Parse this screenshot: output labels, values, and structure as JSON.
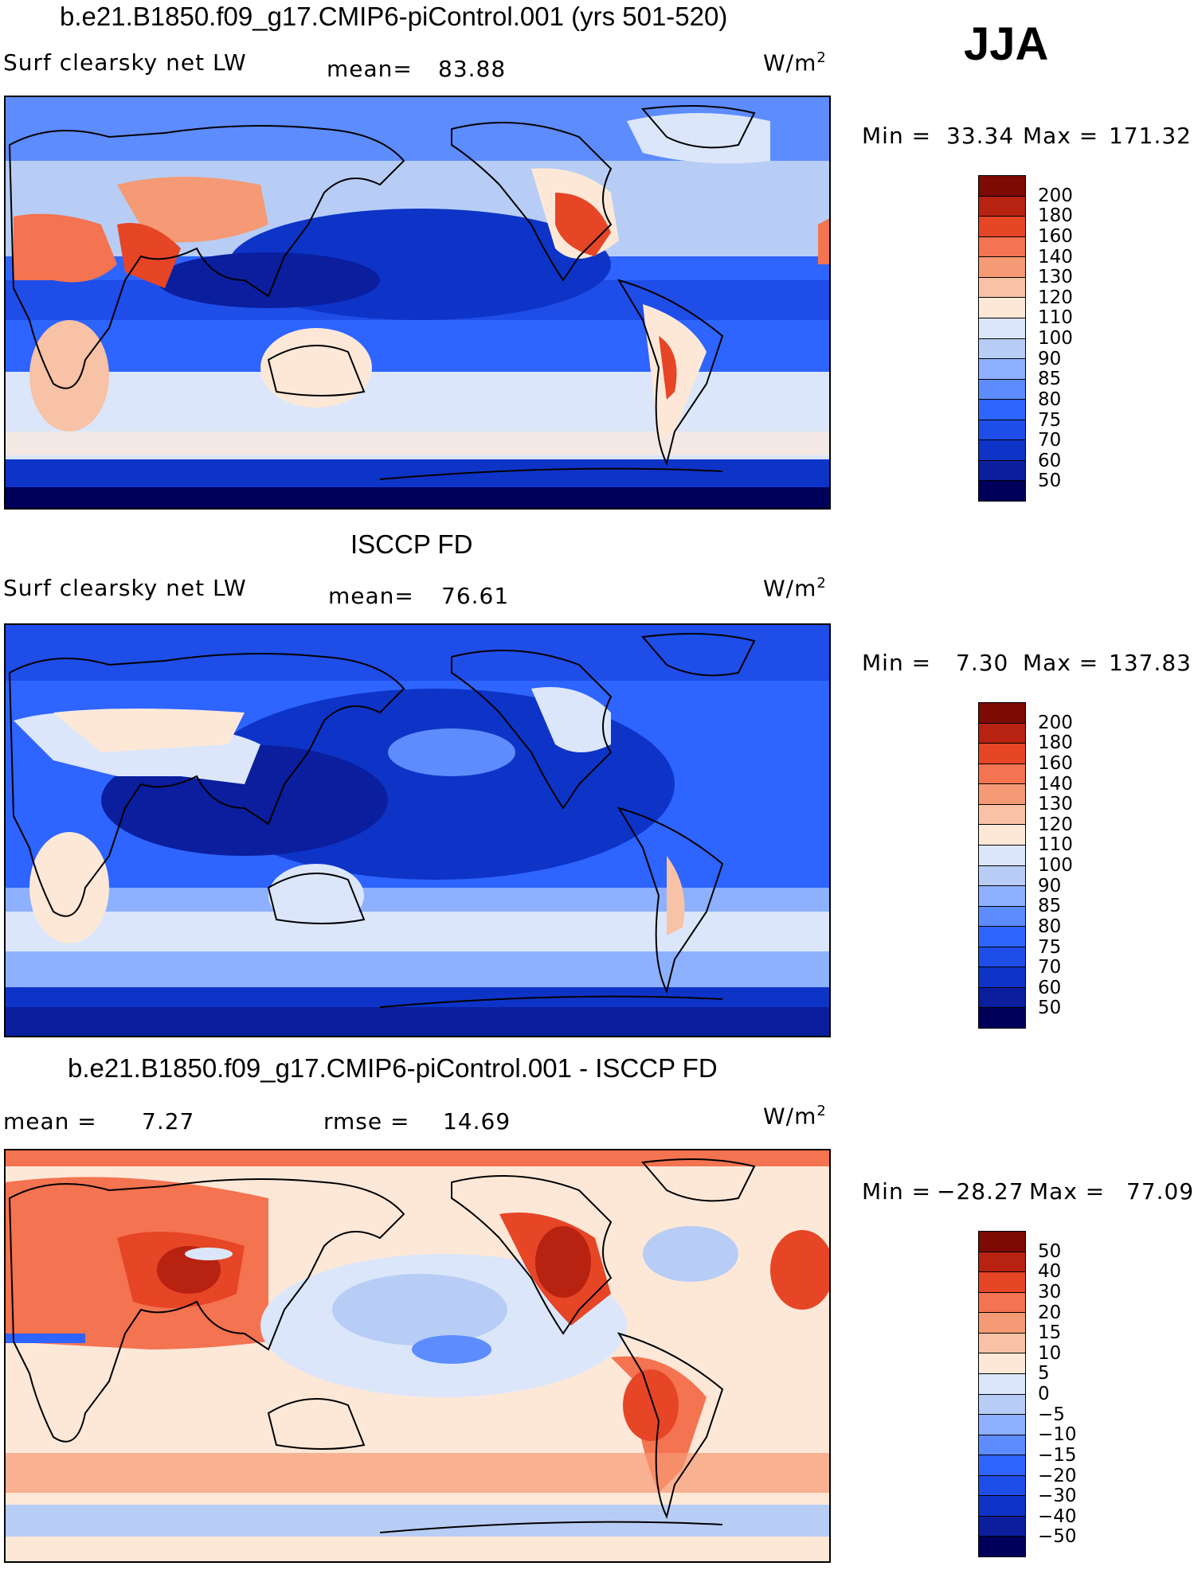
{
  "season": "JJA",
  "palette": {
    "abs": [
      "#00005a",
      "#0a1e9e",
      "#0d34c7",
      "#1e4de8",
      "#2e64ff",
      "#5d8cff",
      "#8db0ff",
      "#b8cdf5",
      "#dbe6fa",
      "#fde8d8",
      "#f8c2a6",
      "#f59a74",
      "#f47350",
      "#e64526",
      "#b82210",
      "#7d0a04"
    ],
    "diff": [
      "#00005a",
      "#0a1e9e",
      "#0d34c7",
      "#1e4de8",
      "#2e64ff",
      "#5d8cff",
      "#8db0ff",
      "#b8cdf5",
      "#dbe6fa",
      "#fde8d8",
      "#f8c2a6",
      "#f59a74",
      "#f47350",
      "#e64526",
      "#b82210",
      "#7d0a04"
    ]
  },
  "panels": [
    {
      "title": "b.e21.B1850.f09_g17.CMIP6-piControl.001 (yrs 501-520)",
      "left_label": "Surf  clearsky  net  LW",
      "mean_label": "mean=",
      "mean_value": "83.88",
      "units_base": "W/m",
      "units_exp": "2",
      "min_label": "Min  =",
      "min_value": "33.34",
      "max_label": "Max  =",
      "max_value": "171.32",
      "levels": [
        "200",
        "180",
        "160",
        "140",
        "130",
        "120",
        "110",
        "100",
        "90",
        "85",
        "80",
        "75",
        "70",
        "60",
        "50"
      ]
    },
    {
      "title": "ISCCP FD",
      "left_label": "Surf  clearsky  net  LW",
      "mean_label": "mean=",
      "mean_value": "76.61",
      "units_base": "W/m",
      "units_exp": "2",
      "min_label": "Min  =",
      "min_value": "7.30",
      "max_label": "Max  =",
      "max_value": "137.83",
      "levels": [
        "200",
        "180",
        "160",
        "140",
        "130",
        "120",
        "110",
        "100",
        "90",
        "85",
        "80",
        "75",
        "70",
        "60",
        "50"
      ]
    },
    {
      "title": "b.e21.B1850.f09_g17.CMIP6-piControl.001 - ISCCP FD",
      "left_label": "mean  =",
      "mean_label": "",
      "mean_value": "7.27",
      "rmse_label": "rmse  =",
      "rmse_value": "14.69",
      "units_base": "W/m",
      "units_exp": "2",
      "min_label": "Min  =",
      "min_value": "−28.27",
      "max_label": "Max  =",
      "max_value": "77.09",
      "levels": [
        "50",
        "40",
        "30",
        "20",
        "15",
        "10",
        "5",
        "0",
        "−5",
        "−10",
        "−15",
        "−20",
        "−30",
        "−40",
        "−50"
      ]
    }
  ]
}
